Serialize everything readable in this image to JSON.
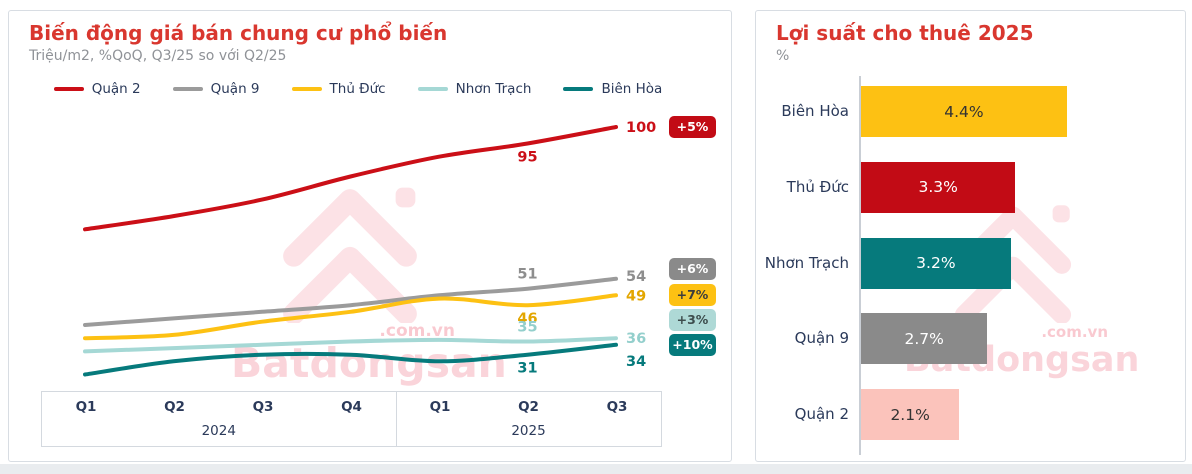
{
  "watermark": {
    "brand": "Batdongsan",
    "domain": ".com.vn"
  },
  "chart_data": [
    {
      "type": "line",
      "title": "Biến động giá bán chung cư phổ biến",
      "subtitle": "Triệu/m2, %QoQ, Q3/25 so với Q2/25",
      "unit": "Triệu/m2",
      "x": [
        "Q1",
        "Q2",
        "Q3",
        "Q4",
        "Q1",
        "Q2",
        "Q3"
      ],
      "x_groups": [
        {
          "label": "2024",
          "span": 4
        },
        {
          "label": "2025",
          "span": 3
        }
      ],
      "ylim": [
        20,
        105
      ],
      "grid": false,
      "legend_position": "top",
      "series": [
        {
          "name": "Quận 2",
          "color": "#cb0f17",
          "label_color": "#cb0f17",
          "values": [
            69,
            73,
            78,
            85,
            91,
            95,
            100
          ],
          "mid_label": {
            "index": 5,
            "text": "95",
            "position": "below"
          },
          "end_label": "100",
          "badge": {
            "text": "+5%",
            "bg": "#c20b15",
            "fg": "#ffffff"
          }
        },
        {
          "name": "Quận 9",
          "color": "#9b9b9b",
          "label_color": "#8e8e8e",
          "values": [
            40,
            42,
            44,
            46,
            49,
            51,
            54
          ],
          "mid_label": {
            "index": 5,
            "text": "51",
            "position": "above"
          },
          "end_label": "54",
          "badge": {
            "text": "+6%",
            "bg": "#8a8a8a",
            "fg": "#ffffff"
          }
        },
        {
          "name": "Thủ Đức",
          "color": "#fdc113",
          "label_color": "#e3a600",
          "values": [
            36,
            37,
            41,
            44,
            48,
            46,
            49
          ],
          "mid_label": {
            "index": 5,
            "text": "46",
            "position": "below"
          },
          "end_label": "49",
          "badge": {
            "text": "+7%",
            "bg": "#fdc113",
            "fg": "#3d3d3d"
          }
        },
        {
          "name": "Nhơn Trạch",
          "color": "#a5d8d5",
          "label_color": "#93cfcc",
          "values": [
            32,
            33,
            34,
            35,
            35.5,
            35,
            36
          ],
          "mid_label": {
            "index": 5,
            "text": "35",
            "position": "above"
          },
          "end_label": "36",
          "badge": {
            "text": "+3%",
            "bg": "#aed9d6",
            "fg": "#3d4d4d"
          }
        },
        {
          "name": "Biên Hòa",
          "color": "#067a7c",
          "label_color": "#067a7c",
          "values": [
            25,
            29,
            31,
            31,
            29,
            31,
            34
          ],
          "mid_label": {
            "index": 5,
            "text": "31",
            "position": "below"
          },
          "end_label": "34",
          "badge": {
            "text": "+10%",
            "bg": "#067a7c",
            "fg": "#ffffff"
          }
        }
      ]
    },
    {
      "type": "bar",
      "title": "Lợi suất cho thuê 2025",
      "subtitle": "%",
      "orientation": "horizontal",
      "categories": [
        "Biên Hòa",
        "Thủ Đức",
        "Nhơn Trạch",
        "Quận 9",
        "Quận 2"
      ],
      "values": [
        4.4,
        3.3,
        3.2,
        2.7,
        2.1
      ],
      "value_labels": [
        "4.4%",
        "3.3%",
        "3.2%",
        "2.7%",
        "2.1%"
      ],
      "bar_colors": [
        "#fdc113",
        "#c20b15",
        "#067a7c",
        "#8a8a8a",
        "#fbc3bb"
      ],
      "label_colors": [
        "#333333",
        "#ffffff",
        "#ffffff",
        "#ffffff",
        "#333333"
      ],
      "xlim": [
        0,
        4.8
      ],
      "grid": false
    }
  ]
}
